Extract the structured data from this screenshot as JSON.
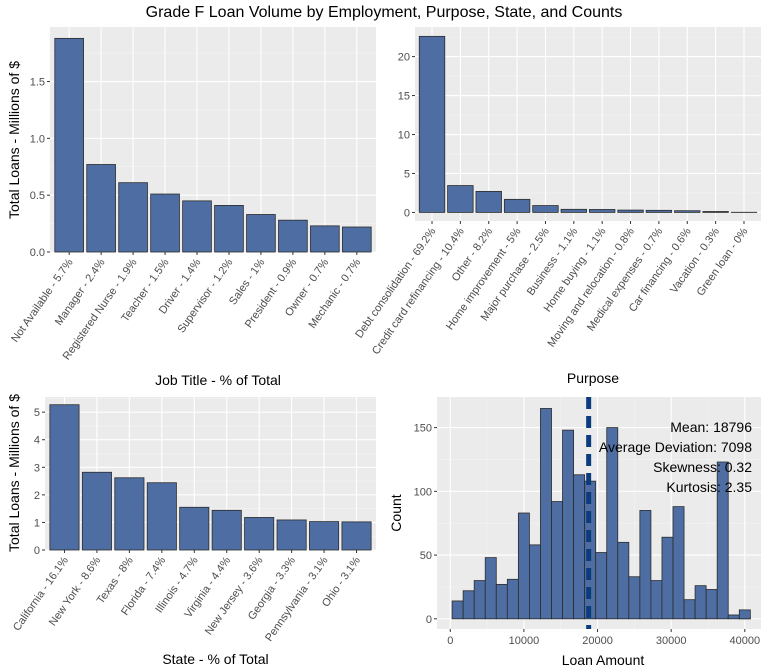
{
  "figure_title": "Grade F Loan Volume by Employment, Purpose, State, and Counts",
  "colors": {
    "bar_fill": "#4e6ea3",
    "bar_stroke": "#2b2b2b",
    "panel_bg": "#ebebeb",
    "mean_line": "#0b3d7e"
  },
  "chart_data": [
    {
      "type": "bar",
      "categories": [
        "Not Available - 5.7%",
        "Manager - 2.4%",
        "Registered Nurse - 1.9%",
        "Teacher - 1.5%",
        "Driver - 1.4%",
        "Supervisor - 1.2%",
        "Sales - 1%",
        "President - 0.9%",
        "Owner - 0.7%",
        "Mechanic - 0.7%"
      ],
      "values": [
        1.88,
        0.77,
        0.61,
        0.51,
        0.45,
        0.41,
        0.33,
        0.28,
        0.23,
        0.22
      ],
      "xlabel": "Job Title - % of Total",
      "ylabel": "Total Loans - Millions of $",
      "ylim": [
        0,
        1.98
      ],
      "yticks": [
        0.0,
        0.5,
        1.0,
        1.5
      ],
      "ytick_labels": [
        "0.0",
        "0.5",
        "1.0",
        "1.5"
      ],
      "grid": true
    },
    {
      "type": "bar",
      "categories": [
        "Debt consolidation - 69.2%",
        "Credit card refinancing - 10.4%",
        "Other - 8.2%",
        "Home improvement - 5%",
        "Major purchase - 2.5%",
        "Business - 1.1%",
        "Home buying - 1.1%",
        "Moving and relocation - 0.8%",
        "Medical expenses - 0.7%",
        "Car financing - 0.6%",
        "Vacation - 0.3%",
        "Green loan - 0%"
      ],
      "values": [
        22.6,
        3.45,
        2.7,
        1.68,
        0.88,
        0.4,
        0.38,
        0.3,
        0.27,
        0.22,
        0.12,
        0.02
      ],
      "xlabel": "Purpose",
      "ylabel": "",
      "ylim": [
        -1.1,
        23.8
      ],
      "yticks": [
        0,
        5,
        10,
        15,
        20
      ],
      "ytick_labels": [
        "0",
        "5",
        "10",
        "15",
        "20"
      ],
      "grid": true
    },
    {
      "type": "bar",
      "categories": [
        "California - 16.1%",
        "New York - 8.6%",
        "Texas - 8%",
        "Florida - 7.4%",
        "Illinois - 4.7%",
        "Virginia - 4.4%",
        "New Jersey - 3.6%",
        "Georgia - 3.3%",
        "Pennsylvania - 3.1%",
        "Ohio - 3.1%"
      ],
      "values": [
        5.27,
        2.82,
        2.62,
        2.44,
        1.55,
        1.44,
        1.18,
        1.09,
        1.03,
        1.02
      ],
      "xlabel": "State - % of Total",
      "ylabel": "Total Loans - Millions of $",
      "ylim": [
        0,
        5.55
      ],
      "yticks": [
        0,
        1,
        2,
        3,
        4,
        5
      ],
      "ytick_labels": [
        "0",
        "1",
        "2",
        "3",
        "4",
        "5"
      ],
      "grid": true
    },
    {
      "type": "histogram",
      "x_centers": [
        1000,
        2500,
        4000,
        5500,
        7000,
        8500,
        10000,
        11500,
        13000,
        14500,
        16000,
        17500,
        19000,
        20500,
        22000,
        23500,
        25000,
        26500,
        28000,
        29500,
        31000,
        32500,
        34000,
        35500,
        37000,
        38500,
        40000
      ],
      "counts": [
        14,
        22,
        30,
        48,
        27,
        31,
        83,
        58,
        165,
        92,
        148,
        113,
        108,
        52,
        150,
        60,
        33,
        85,
        30,
        64,
        88,
        15,
        26,
        23,
        123,
        3,
        1
      ],
      "extra_bins": [
        {
          "x": 40000,
          "count": 7
        }
      ],
      "xlabel": "Loan Amount",
      "ylabel": "Count",
      "xlim": [
        -1800,
        42200
      ],
      "ylim": [
        -8,
        174
      ],
      "xticks": [
        0,
        10000,
        20000,
        30000,
        40000
      ],
      "xtick_labels": [
        "0",
        "10000",
        "20000",
        "30000",
        "40000"
      ],
      "yticks": [
        0,
        50,
        100,
        150
      ],
      "ytick_labels": [
        "0",
        "50",
        "100",
        "150"
      ],
      "mean_line": 18796,
      "annotations": [
        "Mean: 18796",
        "Average Deviation: 7098",
        "Skewness: 0.32",
        "Kurtosis: 2.35"
      ],
      "grid": true
    }
  ]
}
